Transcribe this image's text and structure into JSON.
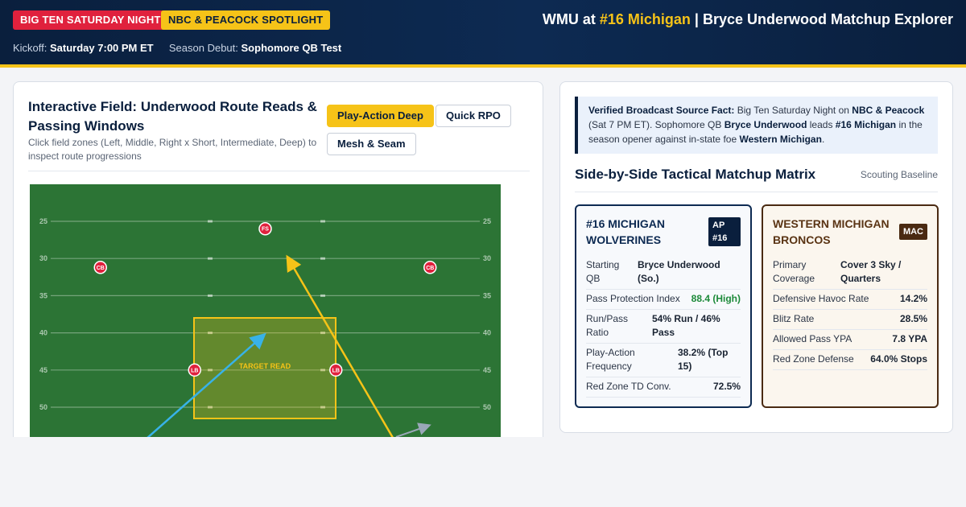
{
  "header": {
    "badge_primary": "BIG TEN SATURDAY NIGHT",
    "badge_secondary": "NBC & PEACOCK SPOTLIGHT",
    "title_prefix": "WMU at ",
    "title_accent": "#16 Michigan",
    "title_suffix": " | Bryce Underwood Matchup Explorer",
    "kickoff_label": "Kickoff:",
    "kickoff_value": "Saturday 7:00 PM ET",
    "debut_label": "Season Debut:",
    "debut_value": "Sophomore QB Test",
    "colors": {
      "navy": "#0a1f3d",
      "maize": "#f6c318",
      "red": "#e0213d"
    }
  },
  "field_panel": {
    "title": "Interactive Field: Underwood Route Reads & Passing Windows",
    "hint": "Click field zones (Left, Middle, Right x Short, Intermediate, Deep) to inspect route progressions",
    "buttons": [
      {
        "label": "Play-Action Deep",
        "active": true
      },
      {
        "label": "Quick RPO",
        "active": false
      },
      {
        "label": "Mesh & Seam",
        "active": false
      }
    ],
    "yard_lines": [
      "25",
      "30",
      "35",
      "40",
      "45",
      "50"
    ],
    "target_label": "TARGET READ",
    "defenders": [
      {
        "label": "FS",
        "x_pct": 50,
        "yard": 26
      },
      {
        "label": "CB",
        "x_pct": 15,
        "yard": 31.2
      },
      {
        "label": "CB",
        "x_pct": 85,
        "yard": 31.2
      },
      {
        "label": "LB",
        "x_pct": 35,
        "yard": 45
      },
      {
        "label": "LB",
        "x_pct": 65,
        "yard": 45
      }
    ],
    "colors": {
      "turf": "#2f7a3a",
      "route_primary": "#f6c318",
      "route_secondary": "#38b2e8",
      "route_check": "#9aa7b8",
      "defender": "#e0213d"
    }
  },
  "source_fact": {
    "lead": "Verified Broadcast Source Fact:",
    "t1": " Big Ten Saturday Night on ",
    "network": "NBC & Peacock",
    "t2": " (Sat 7 PM ET). Sophomore QB ",
    "qb": "Bryce Underwood",
    "t3": " leads ",
    "team": "#16 Michigan",
    "t4": " in the season opener against in-state foe ",
    "opponent": "Western Michigan",
    "t5": "."
  },
  "matrix": {
    "title": "Side-by-Side Tactical Matchup Matrix",
    "tag": "Scouting Baseline",
    "michigan": {
      "name": "#16 MICHIGAN WOLVERINES",
      "badge": "AP #16",
      "stats": [
        {
          "label": "Starting QB",
          "value": "Bryce Underwood (So.)"
        },
        {
          "label": "Pass Protection Index",
          "value": "88.4 (High)"
        },
        {
          "label": "Run/Pass Ratio",
          "value": "54% Run / 46% Pass"
        },
        {
          "label": "Play-Action Frequency",
          "value": "38.2% (Top 15)"
        },
        {
          "label": "Red Zone TD Conv.",
          "value": "72.5%"
        }
      ]
    },
    "wmu": {
      "name": "WESTERN MICHIGAN BRONCOS",
      "badge": "MAC",
      "stats": [
        {
          "label": "Primary Coverage",
          "value": "Cover 3 Sky / Quarters"
        },
        {
          "label": "Defensive Havoc Rate",
          "value": "14.2%"
        },
        {
          "label": "Blitz Rate",
          "value": "28.5%"
        },
        {
          "label": "Allowed Pass YPA",
          "value": "7.8 YPA"
        },
        {
          "label": "Red Zone Defense",
          "value": "64.0% Stops"
        }
      ]
    }
  }
}
